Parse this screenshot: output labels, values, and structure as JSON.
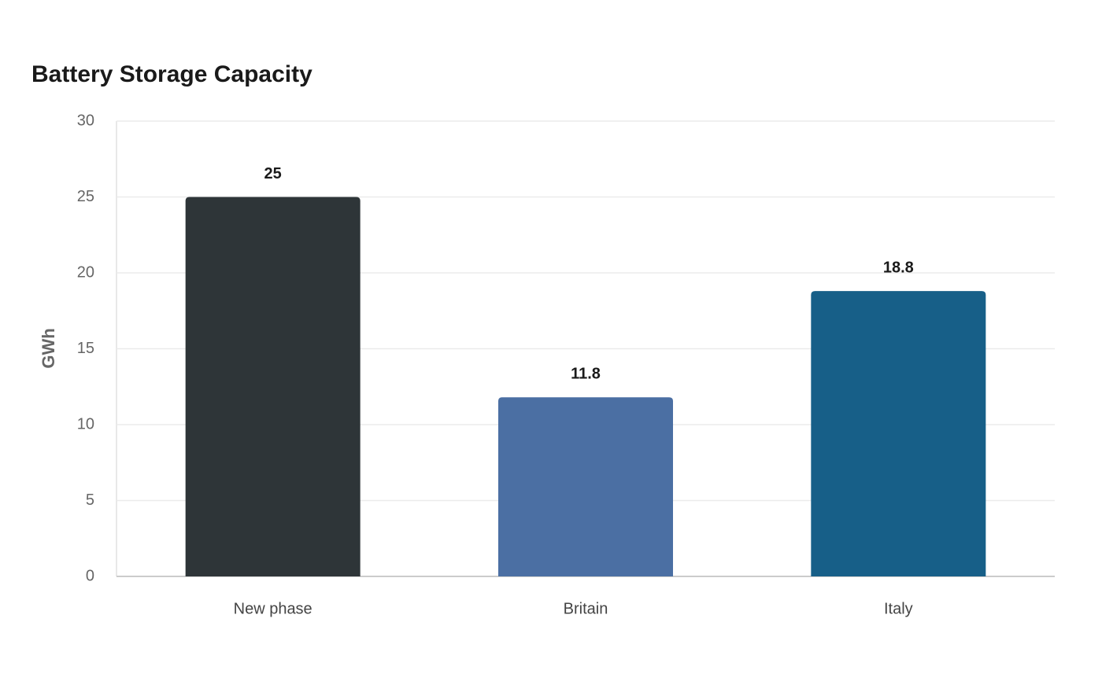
{
  "chart_data": {
    "type": "bar",
    "title": "Battery Storage Capacity",
    "y_label": "GWh",
    "categories": [
      "New phase",
      "Britain",
      "Italy"
    ],
    "values": [
      25,
      11.8,
      18.8
    ],
    "colors": [
      "#2e3538",
      "#4b6fa3",
      "#175f88"
    ],
    "ylim": [
      0,
      30
    ],
    "yticks": [
      0,
      5,
      10,
      15,
      20,
      25,
      30
    ],
    "grid": true
  }
}
